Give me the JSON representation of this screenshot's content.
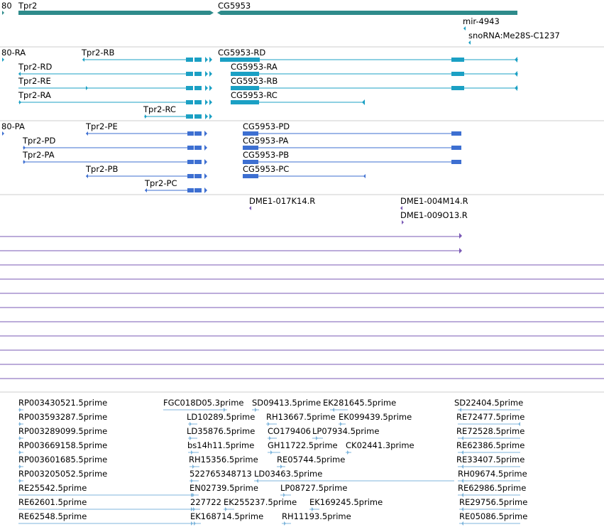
{
  "colors": {
    "gene": "#2e8b8b",
    "rna": "#1ba0c4",
    "protein": "#3d6fd1",
    "clone": "#7a59b5",
    "est": "#7fb6dc",
    "divider": "#cccccc",
    "label": "#000000"
  },
  "tracks": {
    "genes": {
      "features": [
        {
          "label": "80",
          "strand": "+"
        },
        {
          "label": "Tpr2",
          "strand": "+"
        },
        {
          "label": "CG5953",
          "strand": "-"
        },
        {
          "label": "mir-4943",
          "strand": "-"
        },
        {
          "label": "snoRNA:Me28S-C1237",
          "strand": "-"
        }
      ]
    },
    "transcripts": {
      "features": [
        {
          "label": "80-RA"
        },
        {
          "label": "Tpr2-RB"
        },
        {
          "label": "CG5953-RD"
        },
        {
          "label": "Tpr2-RD"
        },
        {
          "label": "CG5953-RA"
        },
        {
          "label": "Tpr2-RE"
        },
        {
          "label": "CG5953-RB"
        },
        {
          "label": "Tpr2-RA"
        },
        {
          "label": "CG5953-RC"
        },
        {
          "label": "Tpr2-RC"
        }
      ]
    },
    "proteins": {
      "features": [
        {
          "label": "80-PA"
        },
        {
          "label": "Tpr2-PE"
        },
        {
          "label": "CG5953-PD"
        },
        {
          "label": "Tpr2-PD"
        },
        {
          "label": "CG5953-PA"
        },
        {
          "label": "Tpr2-PA"
        },
        {
          "label": "CG5953-PB"
        },
        {
          "label": "Tpr2-PB"
        },
        {
          "label": "CG5953-PC"
        },
        {
          "label": "Tpr2-PC"
        }
      ]
    },
    "clones": {
      "features": [
        {
          "label": "DME1-017K14.R"
        },
        {
          "label": "DME1-004M14.R"
        },
        {
          "label": "DME1-009O13.R"
        }
      ]
    },
    "ests": {
      "features": [
        {
          "label": "RP003430521.5prime"
        },
        {
          "label": "FGC018D05.3prime"
        },
        {
          "label": "SD09413.5prime"
        },
        {
          "label": "EK281645.5prime"
        },
        {
          "label": "SD22404.5prime"
        },
        {
          "label": "RP003593287.5prime"
        },
        {
          "label": "LD10289.5prime"
        },
        {
          "label": "RH13667.5prime"
        },
        {
          "label": "EK099439.5prime"
        },
        {
          "label": "RE72477.5prime"
        },
        {
          "label": "RP003289099.5prime"
        },
        {
          "label": "LD35876.5prime"
        },
        {
          "label": "CO179406"
        },
        {
          "label": "LP07934.5prime"
        },
        {
          "label": "RE72528.5prime"
        },
        {
          "label": "RP003669158.5prime"
        },
        {
          "label": "bs14h11.5prime"
        },
        {
          "label": "GH11722.5prime"
        },
        {
          "label": "CK02441.3prime"
        },
        {
          "label": "RE62386.5prime"
        },
        {
          "label": "RP003601685.5prime"
        },
        {
          "label": "RH15356.5prime"
        },
        {
          "label": "RE05744.5prime"
        },
        {
          "label": "RE33407.5prime"
        },
        {
          "label": "RP003205052.5prime"
        },
        {
          "label": "522765348713"
        },
        {
          "label": "LD03463.5prime"
        },
        {
          "label": "RH09674.5prime"
        },
        {
          "label": "RE25542.5prime"
        },
        {
          "label": "EN02739.5prime"
        },
        {
          "label": "LP08727.5prime"
        },
        {
          "label": "RE62986.5prime"
        },
        {
          "label": "RE62601.5prime"
        },
        {
          "label": "227722"
        },
        {
          "label": "EK255237.5prime"
        },
        {
          "label": "EK169245.5prime"
        },
        {
          "label": "RE29756.5prime"
        },
        {
          "label": "RE62548.5prime"
        },
        {
          "label": "EK168714.5prime"
        },
        {
          "label": "RH11193.5prime"
        },
        {
          "label": "RE05086.5prime"
        }
      ]
    }
  }
}
